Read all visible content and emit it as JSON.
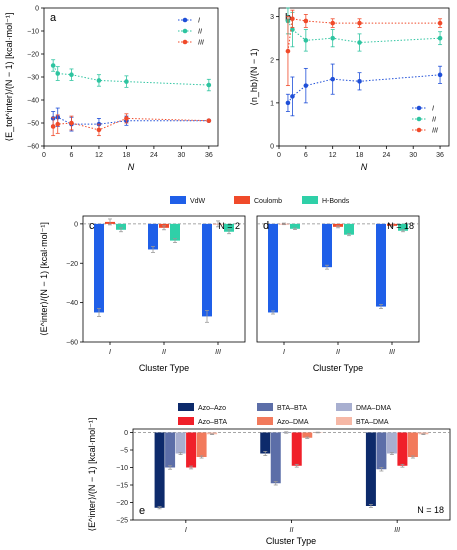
{
  "chart_data": [
    {
      "panel": "a",
      "type": "line",
      "x": [
        2,
        3,
        6,
        12,
        18,
        36
      ],
      "xlabel": "N",
      "ylabel": "⟨E_tot^inter⟩/(N − 1) [kcal·mol⁻¹]",
      "xlim": [
        0,
        38
      ],
      "ylim": [
        -60,
        0
      ],
      "xticks": [
        0,
        6,
        12,
        18,
        24,
        30,
        36
      ],
      "yticks": [
        0,
        -10,
        -20,
        -30,
        -40,
        -50,
        -60
      ],
      "legend": "top-right",
      "series": [
        {
          "name": "I",
          "color": "#1f4fd8",
          "values": [
            -48,
            -47.5,
            -50.5,
            -50.5,
            -49,
            -49
          ],
          "errors": [
            3,
            4,
            3,
            2.5,
            2,
            0
          ]
        },
        {
          "name": "II",
          "color": "#2ec4a0",
          "values": [
            -25,
            -28.5,
            -29,
            -31.5,
            -32,
            -33.5
          ],
          "errors": [
            2.5,
            3,
            2.5,
            2.5,
            2.5,
            2.5
          ]
        },
        {
          "name": "III",
          "color": "#f04a2a",
          "values": [
            -51.5,
            -50.5,
            -50,
            -53,
            -48,
            -49
          ],
          "errors": [
            4,
            4,
            3,
            2.5,
            2,
            0
          ]
        }
      ]
    },
    {
      "panel": "b",
      "type": "line",
      "x": [
        2,
        3,
        6,
        12,
        18,
        36
      ],
      "xlabel": "N",
      "ylabel": "⟨n_hb⟩/(N − 1)",
      "xlim": [
        0,
        38
      ],
      "ylim": [
        0,
        3.2
      ],
      "xticks": [
        0,
        6,
        12,
        18,
        24,
        30,
        36
      ],
      "yticks": [
        0,
        1,
        2,
        3
      ],
      "legend": "bottom-right",
      "series": [
        {
          "name": "I",
          "color": "#1f4fd8",
          "values": [
            1.0,
            1.15,
            1.4,
            1.55,
            1.5,
            1.65
          ],
          "errors": [
            0.2,
            0.45,
            0.4,
            0.35,
            0.2,
            0.2
          ]
        },
        {
          "name": "II",
          "color": "#2ec4a0",
          "values": [
            2.9,
            2.7,
            2.45,
            2.5,
            2.4,
            2.5
          ],
          "errors": [
            0.3,
            0.4,
            0.25,
            0.2,
            0.2,
            0.15
          ]
        },
        {
          "name": "III",
          "color": "#f04a2a",
          "values": [
            2.2,
            2.95,
            2.9,
            2.85,
            2.85,
            2.85
          ],
          "errors": [
            0.8,
            0.2,
            0.15,
            0.1,
            0.1,
            0.1
          ]
        }
      ]
    },
    {
      "panel": "c",
      "type": "bar",
      "annotation": "N = 2",
      "categories": [
        "I",
        "II",
        "III"
      ],
      "xlabel": "Cluster Type",
      "ylabel": "⟨E^inter⟩/(N − 1) [kcal·mol⁻¹]",
      "ylim": [
        -60,
        4
      ],
      "yticks": [
        0,
        -20,
        -40,
        -60
      ],
      "legend": "top-center",
      "series": [
        {
          "name": "VdW",
          "color": "#1f5fe8",
          "values": [
            -45,
            -13,
            -47
          ],
          "errors": [
            2,
            1.5,
            3
          ]
        },
        {
          "name": "Coulomb",
          "color": "#f04a2a",
          "values": [
            1,
            -2,
            0
          ],
          "errors": [
            1.5,
            1,
            1.5
          ]
        },
        {
          "name": "H-Bonds",
          "color": "#2fd0a8",
          "values": [
            -3,
            -8.5,
            -4
          ],
          "errors": [
            1,
            1,
            1
          ]
        }
      ]
    },
    {
      "panel": "d",
      "type": "bar",
      "annotation": "N = 18",
      "categories": [
        "I",
        "II",
        "III"
      ],
      "xlabel": "Cluster Type",
      "ylim": [
        -60,
        4
      ],
      "series": [
        {
          "name": "VdW",
          "color": "#1f5fe8",
          "values": [
            -45,
            -22,
            -42
          ],
          "errors": [
            0.8,
            1,
            1
          ]
        },
        {
          "name": "Coulomb",
          "color": "#f04a2a",
          "values": [
            0,
            -1.5,
            -1
          ],
          "errors": [
            0.4,
            0.5,
            0.5
          ]
        },
        {
          "name": "H-Bonds",
          "color": "#2fd0a8",
          "values": [
            -2.5,
            -5.5,
            -3.5
          ],
          "errors": [
            0.4,
            0.5,
            0.5
          ]
        }
      ]
    },
    {
      "panel": "e",
      "type": "bar",
      "annotation": "N = 18",
      "categories": [
        "I",
        "II",
        "III"
      ],
      "xlabel": "Cluster Type",
      "ylabel": "⟨E^inter⟩/(N − 1) [kcal·mol⁻¹]",
      "ylim": [
        -25,
        1
      ],
      "yticks": [
        0,
        -5,
        -10,
        -15,
        -20,
        -25
      ],
      "legend": "top",
      "series": [
        {
          "name": "Azo–Azo",
          "color": "#0d2a6b",
          "values": [
            -21.5,
            -6,
            -21
          ],
          "errors": [
            0.3,
            0.6,
            0.4
          ]
        },
        {
          "name": "BTA–BTA",
          "color": "#5c6ea8",
          "values": [
            -10,
            -14.5,
            -10.5
          ],
          "errors": [
            0.5,
            0.5,
            0.5
          ]
        },
        {
          "name": "DMA–DMA",
          "color": "#a8afd0",
          "values": [
            -6,
            0,
            -6
          ],
          "errors": [
            0.3,
            0.2,
            0.3
          ]
        },
        {
          "name": "Azo–BTA",
          "color": "#f0202a",
          "values": [
            -10,
            -9.5,
            -9.5
          ],
          "errors": [
            0.4,
            0.4,
            0.4
          ]
        },
        {
          "name": "Azo–DMA",
          "color": "#f27a5c",
          "values": [
            -7,
            -1.5,
            -7
          ],
          "errors": [
            0.3,
            0.2,
            0.3
          ]
        },
        {
          "name": "BTA–DMA",
          "color": "#f6b8a6",
          "values": [
            -0.5,
            0,
            -0.5
          ],
          "errors": [
            0.1,
            0.1,
            0.1
          ]
        }
      ]
    }
  ]
}
